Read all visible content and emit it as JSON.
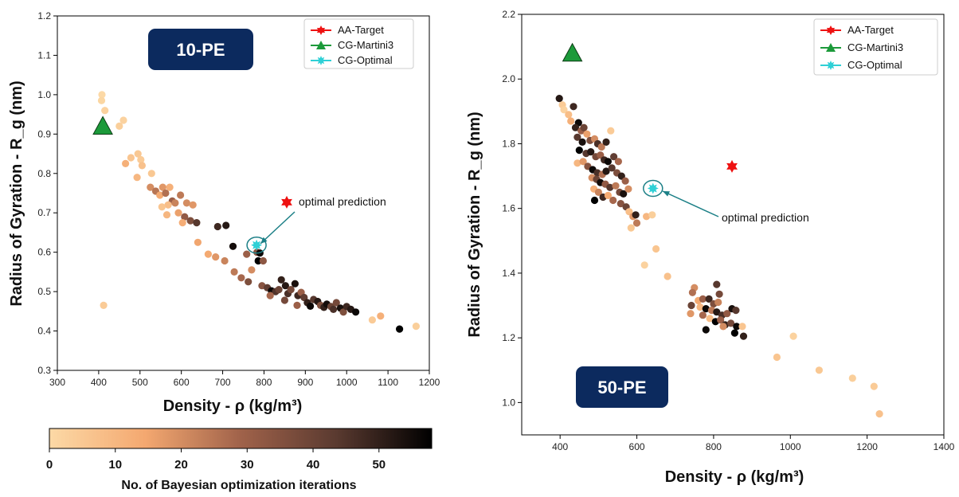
{
  "colorbar": {
    "label": "No. of Bayesian optimization iterations",
    "ticks": [
      "0",
      "10",
      "20",
      "30",
      "40",
      "50"
    ],
    "range": [
      0,
      58
    ],
    "colors": [
      "#fcd9a6",
      "#f4a870",
      "#a0624a",
      "#5a3a30",
      "#000000"
    ]
  },
  "chart_data": [
    {
      "type": "scatter",
      "panel_label": "10-PE",
      "xlabel": "Density - ρ (kg/m³)",
      "ylabel": "Radius of Gyration - R_g (nm)",
      "xlim": [
        300,
        1200
      ],
      "ylim": [
        0.3,
        1.2
      ],
      "xticks": [
        300,
        400,
        500,
        600,
        700,
        800,
        900,
        1000,
        1100,
        1200
      ],
      "yticks": [
        0.3,
        0.4,
        0.5,
        0.6,
        0.7,
        0.8,
        0.9,
        1.0,
        1.1,
        1.2
      ],
      "ytick_decimals": 1,
      "legend": [
        "AA-Target",
        "CG-Martini3",
        "CG-Optimal"
      ],
      "legend_position": "top-right",
      "annotation": "optimal prediction",
      "special_points": {
        "aa_target": {
          "x": 855,
          "y": 0.727
        },
        "cg_martini3": {
          "x": 410,
          "y": 0.92
        },
        "cg_optimal": {
          "x": 782,
          "y": 0.618
        }
      },
      "points": [
        [
          408,
          1.0,
          0
        ],
        [
          407,
          0.985,
          1
        ],
        [
          415,
          0.96,
          2
        ],
        [
          450,
          0.92,
          3
        ],
        [
          460,
          0.935,
          2
        ],
        [
          412,
          0.465,
          4
        ],
        [
          495,
          0.85,
          5
        ],
        [
          502,
          0.835,
          4
        ],
        [
          478,
          0.84,
          6
        ],
        [
          465,
          0.825,
          12
        ],
        [
          505,
          0.82,
          7
        ],
        [
          493,
          0.79,
          10
        ],
        [
          528,
          0.8,
          5
        ],
        [
          525,
          0.765,
          20
        ],
        [
          538,
          0.755,
          25
        ],
        [
          548,
          0.745,
          14
        ],
        [
          555,
          0.765,
          18
        ],
        [
          562,
          0.75,
          26
        ],
        [
          572,
          0.765,
          12
        ],
        [
          578,
          0.73,
          30
        ],
        [
          568,
          0.72,
          8
        ],
        [
          585,
          0.725,
          22
        ],
        [
          598,
          0.745,
          24
        ],
        [
          593,
          0.7,
          16
        ],
        [
          613,
          0.725,
          20
        ],
        [
          628,
          0.72,
          18
        ],
        [
          608,
          0.69,
          32
        ],
        [
          622,
          0.68,
          36
        ],
        [
          637,
          0.675,
          44
        ],
        [
          553,
          0.715,
          6
        ],
        [
          565,
          0.695,
          10
        ],
        [
          603,
          0.675,
          13
        ],
        [
          688,
          0.665,
          48
        ],
        [
          708,
          0.668,
          52
        ],
        [
          640,
          0.625,
          15
        ],
        [
          665,
          0.595,
          14
        ],
        [
          683,
          0.588,
          18
        ],
        [
          705,
          0.578,
          22
        ],
        [
          725,
          0.615,
          55
        ],
        [
          758,
          0.595,
          30
        ],
        [
          783,
          0.6,
          34
        ],
        [
          790,
          0.598,
          56
        ],
        [
          786,
          0.578,
          58
        ],
        [
          798,
          0.578,
          33
        ],
        [
          728,
          0.55,
          24
        ],
        [
          745,
          0.535,
          28
        ],
        [
          762,
          0.525,
          36
        ],
        [
          770,
          0.555,
          20
        ],
        [
          795,
          0.515,
          34
        ],
        [
          808,
          0.51,
          42
        ],
        [
          818,
          0.502,
          56
        ],
        [
          828,
          0.5,
          45
        ],
        [
          836,
          0.505,
          40
        ],
        [
          842,
          0.53,
          50
        ],
        [
          852,
          0.515,
          52
        ],
        [
          858,
          0.495,
          46
        ],
        [
          865,
          0.505,
          38
        ],
        [
          875,
          0.52,
          54
        ],
        [
          882,
          0.49,
          48
        ],
        [
          890,
          0.498,
          30
        ],
        [
          897,
          0.485,
          42
        ],
        [
          905,
          0.472,
          50
        ],
        [
          912,
          0.463,
          56
        ],
        [
          920,
          0.48,
          44
        ],
        [
          930,
          0.475,
          52
        ],
        [
          937,
          0.465,
          36
        ],
        [
          945,
          0.46,
          50
        ],
        [
          952,
          0.468,
          55
        ],
        [
          962,
          0.462,
          40
        ],
        [
          968,
          0.455,
          46
        ],
        [
          975,
          0.472,
          38
        ],
        [
          985,
          0.458,
          54
        ],
        [
          992,
          0.448,
          36
        ],
        [
          1000,
          0.462,
          48
        ],
        [
          1010,
          0.455,
          52
        ],
        [
          1022,
          0.448,
          56
        ],
        [
          1062,
          0.428,
          4
        ],
        [
          1082,
          0.438,
          12
        ],
        [
          1128,
          0.405,
          58
        ],
        [
          1168,
          0.412,
          3
        ],
        [
          880,
          0.465,
          30
        ],
        [
          850,
          0.478,
          38
        ],
        [
          815,
          0.49,
          28
        ]
      ]
    },
    {
      "type": "scatter",
      "panel_label": "50-PE",
      "xlabel": "Density - ρ (kg/m³)",
      "ylabel": "Radius of Gyration - R_g (nm)",
      "xlim": [
        300,
        1400
      ],
      "ylim": [
        0.9,
        2.2
      ],
      "xticks": [
        400,
        600,
        800,
        1000,
        1200,
        1400
      ],
      "yticks": [
        1.0,
        1.2,
        1.4,
        1.6,
        1.8,
        2.0,
        2.2
      ],
      "ytick_decimals": 1,
      "legend": [
        "AA-Target",
        "CG-Martini3",
        "CG-Optimal"
      ],
      "legend_position": "top-right",
      "annotation": "optimal prediction",
      "special_points": {
        "aa_target": {
          "x": 848,
          "y": 1.73
        },
        "cg_martini3": {
          "x": 432,
          "y": 2.08
        },
        "cg_optimal": {
          "x": 642,
          "y": 1.662
        }
      },
      "points": [
        [
          398,
          1.94,
          52
        ],
        [
          406,
          1.92,
          4
        ],
        [
          410,
          1.905,
          2
        ],
        [
          422,
          1.89,
          8
        ],
        [
          435,
          1.915,
          48
        ],
        [
          428,
          1.87,
          12
        ],
        [
          448,
          1.865,
          56
        ],
        [
          440,
          1.85,
          50
        ],
        [
          455,
          1.84,
          30
        ],
        [
          462,
          1.85,
          40
        ],
        [
          470,
          1.83,
          16
        ],
        [
          445,
          1.82,
          44
        ],
        [
          458,
          1.805,
          54
        ],
        [
          478,
          1.81,
          36
        ],
        [
          490,
          1.815,
          20
        ],
        [
          498,
          1.8,
          46
        ],
        [
          508,
          1.79,
          24
        ],
        [
          520,
          1.805,
          50
        ],
        [
          532,
          1.84,
          4
        ],
        [
          450,
          1.78,
          58
        ],
        [
          468,
          1.77,
          44
        ],
        [
          480,
          1.775,
          52
        ],
        [
          493,
          1.76,
          38
        ],
        [
          505,
          1.765,
          30
        ],
        [
          515,
          1.75,
          48
        ],
        [
          525,
          1.745,
          56
        ],
        [
          540,
          1.76,
          42
        ],
        [
          552,
          1.745,
          28
        ],
        [
          445,
          1.74,
          10
        ],
        [
          460,
          1.745,
          18
        ],
        [
          472,
          1.73,
          34
        ],
        [
          485,
          1.72,
          56
        ],
        [
          497,
          1.71,
          46
        ],
        [
          510,
          1.705,
          26
        ],
        [
          520,
          1.715,
          52
        ],
        [
          535,
          1.725,
          44
        ],
        [
          548,
          1.71,
          36
        ],
        [
          560,
          1.7,
          50
        ],
        [
          570,
          1.685,
          30
        ],
        [
          483,
          1.695,
          20
        ],
        [
          495,
          1.69,
          40
        ],
        [
          505,
          1.68,
          55
        ],
        [
          518,
          1.675,
          32
        ],
        [
          530,
          1.665,
          44
        ],
        [
          545,
          1.67,
          24
        ],
        [
          555,
          1.65,
          38
        ],
        [
          565,
          1.645,
          54
        ],
        [
          578,
          1.66,
          20
        ],
        [
          488,
          1.66,
          12
        ],
        [
          500,
          1.65,
          22
        ],
        [
          512,
          1.635,
          48
        ],
        [
          525,
          1.64,
          14
        ],
        [
          538,
          1.625,
          28
        ],
        [
          490,
          1.625,
          58
        ],
        [
          558,
          1.615,
          34
        ],
        [
          572,
          1.605,
          40
        ],
        [
          580,
          1.59,
          8
        ],
        [
          590,
          1.575,
          18
        ],
        [
          597,
          1.58,
          50
        ],
        [
          600,
          1.555,
          24
        ],
        [
          585,
          1.54,
          5
        ],
        [
          625,
          1.575,
          10
        ],
        [
          640,
          1.58,
          3
        ],
        [
          650,
          1.475,
          6
        ],
        [
          620,
          1.425,
          2
        ],
        [
          680,
          1.39,
          7
        ],
        [
          750,
          1.355,
          20
        ],
        [
          745,
          1.34,
          26
        ],
        [
          808,
          1.365,
          44
        ],
        [
          815,
          1.335,
          38
        ],
        [
          760,
          1.315,
          14
        ],
        [
          772,
          1.32,
          30
        ],
        [
          788,
          1.32,
          48
        ],
        [
          800,
          1.305,
          36
        ],
        [
          812,
          1.31,
          22
        ],
        [
          742,
          1.3,
          40
        ],
        [
          765,
          1.295,
          10
        ],
        [
          780,
          1.29,
          56
        ],
        [
          795,
          1.285,
          24
        ],
        [
          808,
          1.28,
          52
        ],
        [
          822,
          1.27,
          46
        ],
        [
          835,
          1.275,
          32
        ],
        [
          848,
          1.29,
          54
        ],
        [
          858,
          1.285,
          44
        ],
        [
          740,
          1.275,
          18
        ],
        [
          772,
          1.27,
          28
        ],
        [
          790,
          1.26,
          8
        ],
        [
          805,
          1.25,
          58
        ],
        [
          818,
          1.255,
          30
        ],
        [
          830,
          1.24,
          50
        ],
        [
          845,
          1.245,
          38
        ],
        [
          860,
          1.235,
          56
        ],
        [
          875,
          1.235,
          6
        ],
        [
          780,
          1.225,
          56
        ],
        [
          825,
          1.235,
          20
        ],
        [
          855,
          1.215,
          58
        ],
        [
          878,
          1.205,
          50
        ],
        [
          965,
          1.14,
          6
        ],
        [
          1008,
          1.205,
          2
        ],
        [
          1075,
          1.1,
          5
        ],
        [
          1162,
          1.075,
          3
        ],
        [
          1218,
          1.05,
          4
        ],
        [
          1232,
          0.965,
          7
        ]
      ]
    }
  ]
}
